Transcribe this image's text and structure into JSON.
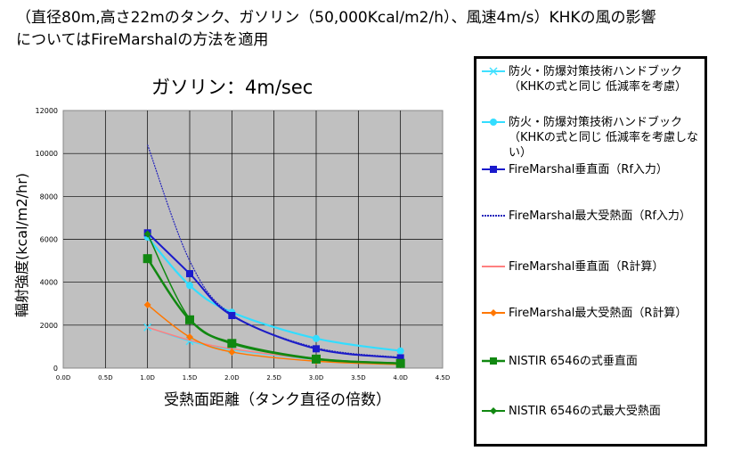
{
  "header": {
    "line1": "（直径80m,高さ22mのタンク、ガソリン（50,000Kcal/m2/h）、風速4m/s）KHKの風の影響",
    "line2": "についてはFireMarshalの方法を適用"
  },
  "chart_data": {
    "type": "line",
    "title": "ガソリン：4m/sec",
    "xlabel": "受熱面距離（タンク直径の倍数）",
    "ylabel": "輻射強度(kcal/m2/hr)",
    "xlim": [
      0,
      4.5
    ],
    "ylim": [
      0,
      12000
    ],
    "x_ticks": [
      "0.0D",
      "0.5D",
      "1.0D",
      "1.5D",
      "2.0D",
      "2.5D",
      "3.0D",
      "3.5D",
      "4.0D",
      "4.5D"
    ],
    "y_ticks": [
      "0",
      "2000",
      "4000",
      "6000",
      "8000",
      "10000",
      "12000"
    ],
    "grid": true,
    "plot_background": "#c0c0c0",
    "legend_position": "right",
    "x": [
      1.0,
      1.5,
      2.0,
      3.0,
      4.0
    ],
    "series": [
      {
        "name": "防火・防爆対策技術ハンドブック（KHKの式と同じ 低減率を考慮）",
        "color": "#40e0ff",
        "marker": "x",
        "values": [
          1900,
          1250,
          850,
          400,
          210
        ]
      },
      {
        "name": "防火・防爆対策技術ハンドブック（KHKの式と同じ 低減率を考慮しない）",
        "color": "#33ddff",
        "marker": "circle",
        "values": [
          6100,
          3850,
          2600,
          1380,
          800
        ]
      },
      {
        "name": "FireMarshal垂直面（Rf入力）",
        "color": "#1a1acc",
        "marker": "square",
        "values": [
          6300,
          4400,
          2450,
          900,
          480
        ]
      },
      {
        "name": "FireMarshal最大受熱面（Rf入力）",
        "color": "#2222bb",
        "marker": "none",
        "values": [
          10400,
          5000,
          2500,
          950,
          500
        ]
      },
      {
        "name": "FireMarshal垂直面（R計算）",
        "color": "#ff8080",
        "marker": "none",
        "values": [
          1900,
          1300,
          900,
          420,
          220
        ]
      },
      {
        "name": "FireMarshal最大受熱面（R計算）",
        "color": "#ff7700",
        "marker": "diamond",
        "values": [
          2950,
          1450,
          750,
          320,
          170
        ]
      },
      {
        "name": "NISTIR 6546の式垂直面",
        "color": "#118811",
        "marker": "square",
        "values": [
          5100,
          2250,
          1150,
          420,
          220
        ]
      },
      {
        "name": "NISTIR 6546の式最大受熱面",
        "color": "#118811",
        "marker": "diamond",
        "values": [
          6250,
          2300,
          1200,
          450,
          230
        ]
      }
    ]
  }
}
